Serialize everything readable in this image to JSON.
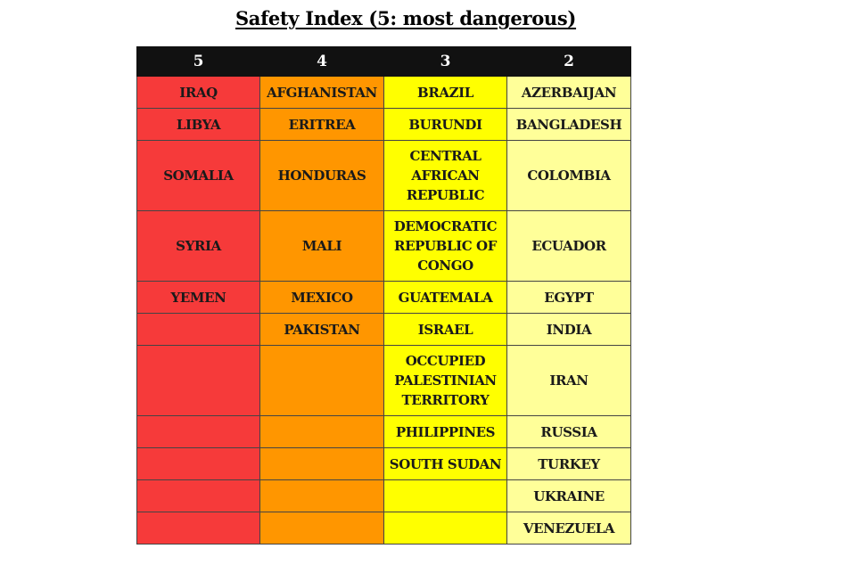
{
  "title": "Safety Index (5: most dangerous)",
  "headers": [
    "5",
    "4",
    "3",
    "2"
  ],
  "colors": {
    "level_5": "#f63a3a",
    "level_4": "#ff9600",
    "level_3": "#ffff00",
    "level_2": "#ffff99",
    "header_bg": "#111111"
  },
  "rows": [
    [
      "IRAQ",
      "AFGHANISTAN",
      "BRAZIL",
      "AZERBAIJAN"
    ],
    [
      "LIBYA",
      "ERITREA",
      "BURUNDI",
      "BANGLADESH"
    ],
    [
      "SOMALIA",
      "HONDURAS",
      "CENTRAL AFRICAN REPUBLIC",
      "COLOMBIA"
    ],
    [
      "SYRIA",
      "MALI",
      "DEMOCRATIC REPUBLIC OF CONGO",
      "ECUADOR"
    ],
    [
      "YEMEN",
      "MEXICO",
      "GUATEMALA",
      "EGYPT"
    ],
    [
      "",
      "PAKISTAN",
      "ISRAEL",
      "INDIA"
    ],
    [
      "",
      "",
      "OCCUPIED PALESTINIAN TERRITORY",
      "IRAN"
    ],
    [
      "",
      "",
      "PHILIPPINES",
      "RUSSIA"
    ],
    [
      "",
      "",
      "SOUTH SUDAN",
      "TURKEY"
    ],
    [
      "",
      "",
      "",
      "UKRAINE"
    ],
    [
      "",
      "",
      "",
      "VENEZUELA"
    ]
  ]
}
